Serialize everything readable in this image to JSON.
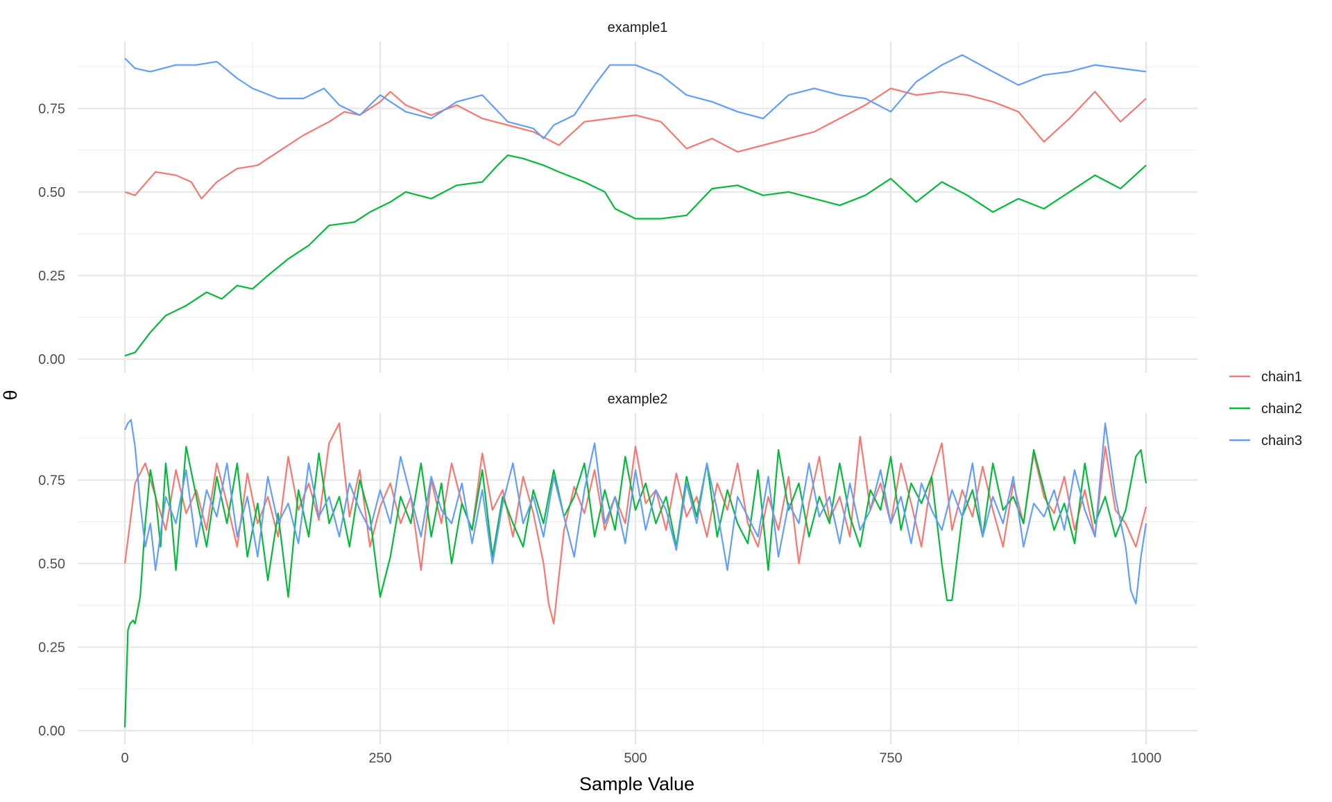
{
  "chart_data": {
    "type": "line",
    "xlabel": "Sample Value",
    "ylabel": "θ",
    "xlim": [
      0,
      1000
    ],
    "ylim": [
      0,
      0.95
    ],
    "x_ticks": [
      "0",
      "250",
      "500",
      "750",
      "1000"
    ],
    "y_ticks": [
      "0.00",
      "0.25",
      "0.50",
      "0.75"
    ],
    "grid": true,
    "legend_position": "right",
    "legend": [
      {
        "name": "chain1",
        "color": "#F8766D"
      },
      {
        "name": "chain2",
        "color": "#00BA38"
      },
      {
        "name": "chain3",
        "color": "#619CFF"
      }
    ],
    "panels": [
      {
        "title": "example1",
        "series": [
          {
            "name": "chain1",
            "color": "#F8766D",
            "x": [
              0,
              10,
              30,
              50,
              65,
              75,
              90,
              110,
              130,
              150,
              175,
              200,
              215,
              230,
              250,
              260,
              275,
              300,
              325,
              350,
              375,
              400,
              425,
              450,
              475,
              500,
              525,
              550,
              575,
              600,
              625,
              650,
              675,
              700,
              725,
              750,
              775,
              800,
              825,
              850,
              875,
              900,
              925,
              950,
              975,
              1000
            ],
            "values": [
              0.5,
              0.49,
              0.56,
              0.55,
              0.53,
              0.48,
              0.53,
              0.57,
              0.58,
              0.62,
              0.67,
              0.71,
              0.74,
              0.73,
              0.77,
              0.8,
              0.76,
              0.73,
              0.76,
              0.72,
              0.7,
              0.68,
              0.64,
              0.71,
              0.72,
              0.73,
              0.71,
              0.63,
              0.66,
              0.62,
              0.64,
              0.66,
              0.68,
              0.72,
              0.76,
              0.81,
              0.79,
              0.8,
              0.79,
              0.77,
              0.74,
              0.65,
              0.72,
              0.8,
              0.71,
              0.78
            ]
          },
          {
            "name": "chain2",
            "color": "#00BA38",
            "x": [
              0,
              10,
              25,
              40,
              60,
              80,
              95,
              110,
              125,
              140,
              160,
              180,
              200,
              225,
              240,
              260,
              275,
              300,
              325,
              350,
              365,
              375,
              390,
              410,
              425,
              450,
              470,
              480,
              500,
              525,
              550,
              575,
              600,
              625,
              650,
              675,
              700,
              725,
              750,
              775,
              800,
              825,
              850,
              875,
              900,
              925,
              950,
              975,
              1000
            ],
            "values": [
              0.01,
              0.02,
              0.08,
              0.13,
              0.16,
              0.2,
              0.18,
              0.22,
              0.21,
              0.25,
              0.3,
              0.34,
              0.4,
              0.41,
              0.44,
              0.47,
              0.5,
              0.48,
              0.52,
              0.53,
              0.58,
              0.61,
              0.6,
              0.58,
              0.56,
              0.53,
              0.5,
              0.45,
              0.42,
              0.42,
              0.43,
              0.51,
              0.52,
              0.49,
              0.5,
              0.48,
              0.46,
              0.49,
              0.54,
              0.47,
              0.53,
              0.49,
              0.44,
              0.48,
              0.45,
              0.5,
              0.55,
              0.51,
              0.58
            ]
          },
          {
            "name": "chain3",
            "color": "#619CFF",
            "x": [
              0,
              10,
              25,
              50,
              70,
              90,
              110,
              125,
              150,
              175,
              195,
              210,
              230,
              250,
              275,
              300,
              325,
              350,
              375,
              400,
              410,
              420,
              440,
              460,
              475,
              500,
              525,
              550,
              575,
              600,
              625,
              650,
              675,
              700,
              725,
              750,
              775,
              800,
              820,
              850,
              875,
              900,
              925,
              950,
              975,
              1000
            ],
            "values": [
              0.9,
              0.87,
              0.86,
              0.88,
              0.88,
              0.89,
              0.84,
              0.81,
              0.78,
              0.78,
              0.81,
              0.76,
              0.73,
              0.79,
              0.74,
              0.72,
              0.77,
              0.79,
              0.71,
              0.69,
              0.66,
              0.7,
              0.73,
              0.82,
              0.88,
              0.88,
              0.85,
              0.79,
              0.77,
              0.74,
              0.72,
              0.79,
              0.81,
              0.79,
              0.78,
              0.74,
              0.83,
              0.88,
              0.91,
              0.86,
              0.82,
              0.85,
              0.86,
              0.88,
              0.87,
              0.86
            ]
          }
        ]
      },
      {
        "title": "example2",
        "series": [
          {
            "name": "chain1",
            "color": "#F8766D",
            "x": [
              0,
              5,
              10,
              20,
              30,
              40,
              50,
              60,
              70,
              80,
              90,
              100,
              110,
              120,
              130,
              140,
              150,
              160,
              170,
              180,
              190,
              200,
              210,
              220,
              230,
              240,
              250,
              260,
              270,
              280,
              290,
              300,
              310,
              320,
              330,
              340,
              350,
              360,
              370,
              380,
              390,
              400,
              410,
              415,
              420,
              430,
              440,
              450,
              460,
              470,
              480,
              490,
              500,
              510,
              520,
              530,
              540,
              550,
              560,
              570,
              580,
              590,
              600,
              610,
              620,
              630,
              640,
              650,
              660,
              670,
              680,
              690,
              700,
              710,
              720,
              730,
              740,
              750,
              760,
              770,
              780,
              790,
              800,
              810,
              820,
              830,
              840,
              850,
              860,
              870,
              880,
              890,
              900,
              910,
              920,
              930,
              940,
              950,
              960,
              970,
              980,
              990,
              1000
            ],
            "values": [
              0.5,
              0.62,
              0.74,
              0.8,
              0.7,
              0.6,
              0.78,
              0.65,
              0.72,
              0.6,
              0.8,
              0.68,
              0.55,
              0.77,
              0.62,
              0.7,
              0.58,
              0.82,
              0.66,
              0.74,
              0.63,
              0.86,
              0.92,
              0.64,
              0.78,
              0.55,
              0.67,
              0.74,
              0.62,
              0.7,
              0.48,
              0.75,
              0.62,
              0.8,
              0.68,
              0.6,
              0.83,
              0.66,
              0.72,
              0.58,
              0.76,
              0.65,
              0.5,
              0.38,
              0.32,
              0.6,
              0.73,
              0.65,
              0.78,
              0.6,
              0.7,
              0.62,
              0.85,
              0.68,
              0.72,
              0.6,
              0.77,
              0.64,
              0.7,
              0.58,
              0.74,
              0.66,
              0.8,
              0.62,
              0.55,
              0.7,
              0.6,
              0.76,
              0.5,
              0.68,
              0.82,
              0.63,
              0.7,
              0.58,
              0.88,
              0.66,
              0.74,
              0.62,
              0.8,
              0.68,
              0.55,
              0.76,
              0.86,
              0.6,
              0.72,
              0.64,
              0.79,
              0.66,
              0.55,
              0.74,
              0.62,
              0.83,
              0.7,
              0.65,
              0.76,
              0.6,
              0.72,
              0.58,
              0.85,
              0.66,
              0.62,
              0.55,
              0.67
            ]
          },
          {
            "name": "chain2",
            "color": "#00BA38",
            "x": [
              0,
              3,
              5,
              8,
              10,
              15,
              20,
              25,
              30,
              35,
              40,
              45,
              50,
              60,
              70,
              80,
              90,
              100,
              110,
              120,
              130,
              140,
              150,
              160,
              170,
              180,
              190,
              200,
              210,
              220,
              230,
              240,
              250,
              260,
              270,
              280,
              290,
              300,
              310,
              320,
              330,
              340,
              350,
              360,
              370,
              380,
              390,
              400,
              410,
              420,
              430,
              440,
              450,
              460,
              470,
              480,
              490,
              500,
              510,
              520,
              530,
              540,
              550,
              560,
              570,
              580,
              590,
              600,
              610,
              620,
              630,
              640,
              650,
              660,
              670,
              680,
              690,
              700,
              710,
              720,
              730,
              740,
              750,
              760,
              770,
              780,
              790,
              800,
              805,
              810,
              820,
              830,
              840,
              850,
              860,
              870,
              880,
              890,
              900,
              910,
              920,
              930,
              940,
              950,
              960,
              970,
              980,
              990,
              995,
              1000
            ],
            "values": [
              0.01,
              0.3,
              0.32,
              0.33,
              0.32,
              0.4,
              0.62,
              0.78,
              0.7,
              0.55,
              0.8,
              0.66,
              0.48,
              0.85,
              0.7,
              0.55,
              0.76,
              0.62,
              0.8,
              0.52,
              0.68,
              0.45,
              0.65,
              0.4,
              0.72,
              0.58,
              0.83,
              0.62,
              0.7,
              0.55,
              0.75,
              0.64,
              0.4,
              0.52,
              0.7,
              0.62,
              0.8,
              0.58,
              0.74,
              0.5,
              0.68,
              0.6,
              0.78,
              0.52,
              0.7,
              0.62,
              0.55,
              0.72,
              0.62,
              0.78,
              0.64,
              0.7,
              0.8,
              0.58,
              0.72,
              0.6,
              0.82,
              0.66,
              0.74,
              0.62,
              0.7,
              0.55,
              0.76,
              0.64,
              0.8,
              0.58,
              0.72,
              0.62,
              0.56,
              0.78,
              0.48,
              0.84,
              0.66,
              0.74,
              0.58,
              0.7,
              0.62,
              0.8,
              0.64,
              0.55,
              0.72,
              0.66,
              0.82,
              0.6,
              0.74,
              0.68,
              0.76,
              0.5,
              0.39,
              0.39,
              0.64,
              0.72,
              0.58,
              0.8,
              0.66,
              0.7,
              0.62,
              0.84,
              0.72,
              0.6,
              0.68,
              0.56,
              0.8,
              0.62,
              0.7,
              0.58,
              0.66,
              0.82,
              0.84,
              0.74
            ]
          },
          {
            "name": "chain3",
            "color": "#619CFF",
            "x": [
              0,
              3,
              6,
              10,
              15,
              20,
              25,
              30,
              40,
              50,
              60,
              70,
              80,
              90,
              100,
              110,
              120,
              130,
              140,
              150,
              160,
              170,
              180,
              190,
              200,
              210,
              220,
              230,
              240,
              250,
              260,
              270,
              280,
              290,
              300,
              310,
              320,
              330,
              340,
              350,
              360,
              370,
              380,
              390,
              400,
              410,
              420,
              430,
              440,
              450,
              460,
              470,
              480,
              490,
              500,
              510,
              520,
              530,
              540,
              550,
              560,
              570,
              580,
              590,
              600,
              610,
              620,
              630,
              640,
              650,
              660,
              670,
              680,
              690,
              700,
              710,
              720,
              730,
              740,
              750,
              760,
              770,
              780,
              790,
              800,
              810,
              820,
              830,
              840,
              850,
              860,
              870,
              880,
              890,
              900,
              910,
              920,
              930,
              940,
              950,
              960,
              970,
              980,
              985,
              990,
              995,
              1000
            ],
            "values": [
              0.9,
              0.92,
              0.93,
              0.85,
              0.68,
              0.55,
              0.62,
              0.48,
              0.7,
              0.62,
              0.78,
              0.55,
              0.72,
              0.64,
              0.8,
              0.58,
              0.7,
              0.52,
              0.76,
              0.62,
              0.68,
              0.56,
              0.8,
              0.64,
              0.7,
              0.58,
              0.74,
              0.66,
              0.6,
              0.72,
              0.62,
              0.82,
              0.7,
              0.58,
              0.76,
              0.66,
              0.62,
              0.74,
              0.56,
              0.72,
              0.5,
              0.68,
              0.8,
              0.62,
              0.7,
              0.58,
              0.76,
              0.64,
              0.52,
              0.72,
              0.86,
              0.62,
              0.7,
              0.56,
              0.78,
              0.6,
              0.72,
              0.66,
              0.54,
              0.74,
              0.62,
              0.8,
              0.66,
              0.48,
              0.7,
              0.64,
              0.58,
              0.76,
              0.52,
              0.68,
              0.62,
              0.8,
              0.64,
              0.7,
              0.56,
              0.74,
              0.6,
              0.66,
              0.78,
              0.62,
              0.7,
              0.56,
              0.74,
              0.66,
              0.6,
              0.72,
              0.64,
              0.8,
              0.58,
              0.7,
              0.62,
              0.76,
              0.55,
              0.68,
              0.64,
              0.72,
              0.6,
              0.78,
              0.66,
              0.58,
              0.92,
              0.7,
              0.55,
              0.42,
              0.38,
              0.52,
              0.62
            ]
          }
        ]
      }
    ]
  }
}
